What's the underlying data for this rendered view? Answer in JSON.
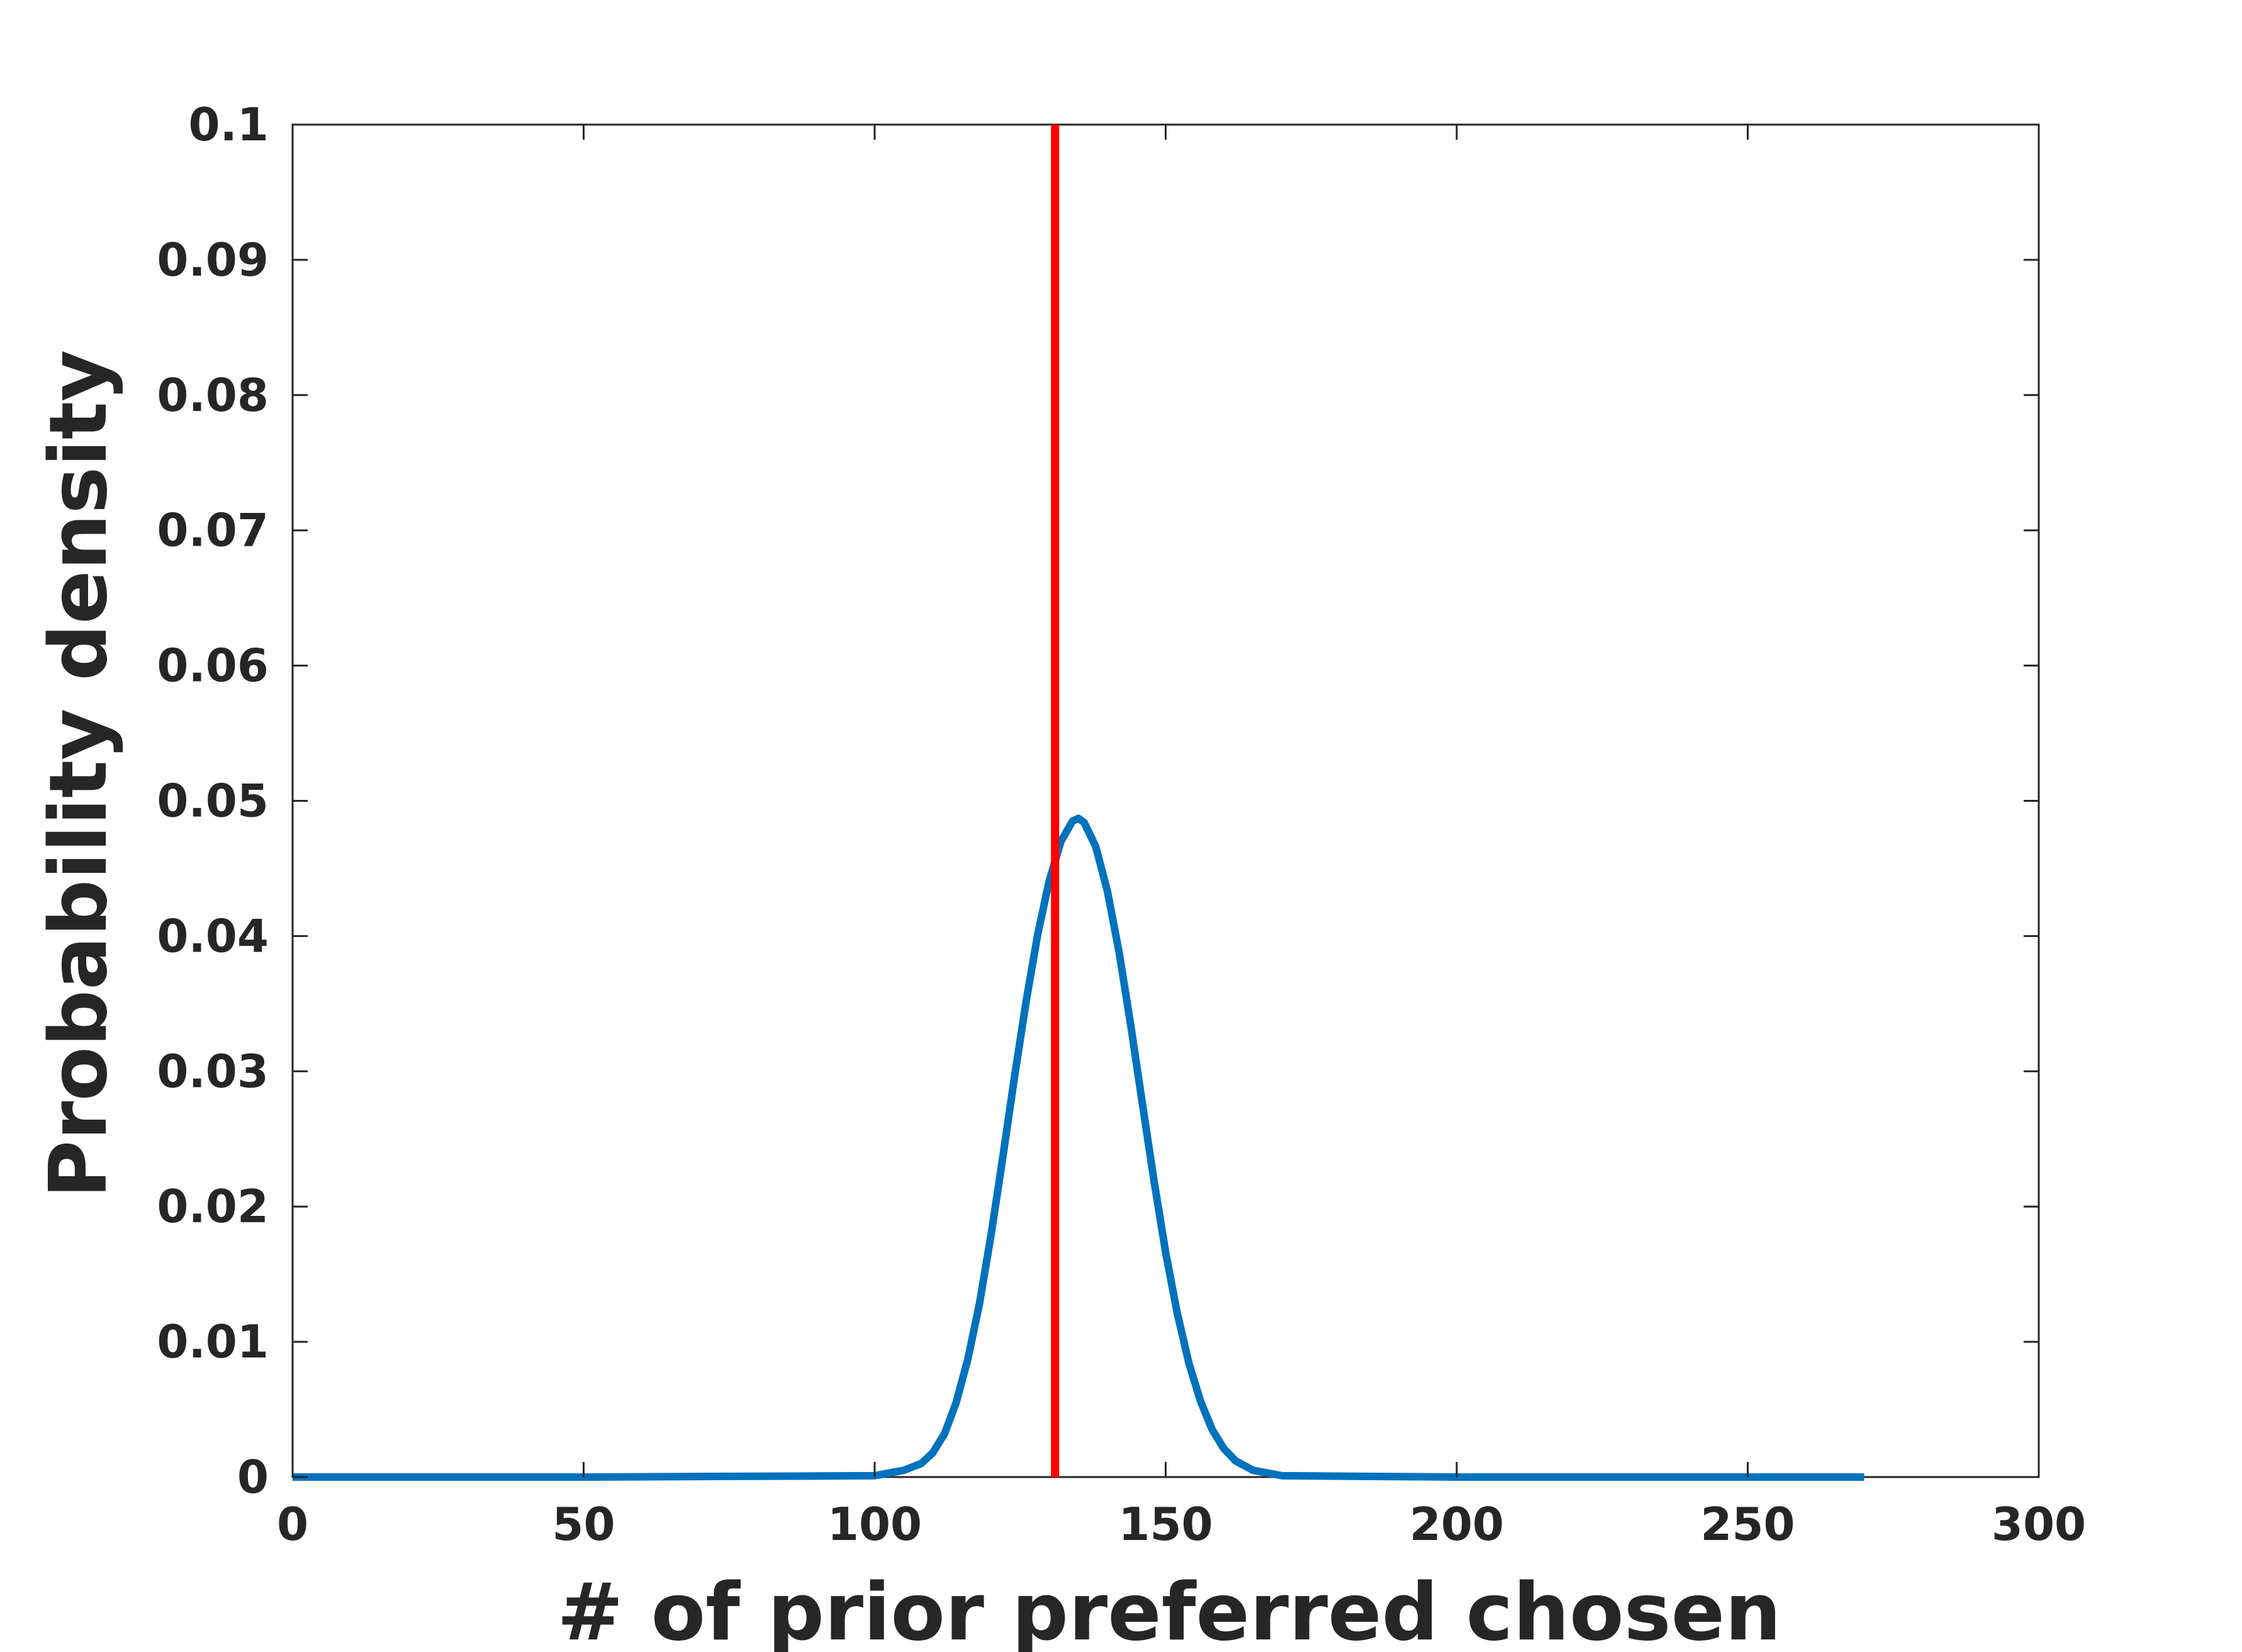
{
  "chart_data": {
    "type": "line",
    "xlabel": "# of prior preferred chosen",
    "ylabel": "Probability density",
    "xlim": [
      0,
      300
    ],
    "ylim": [
      0,
      0.1
    ],
    "x_ticks": [
      0,
      50,
      100,
      150,
      200,
      250,
      300
    ],
    "x_tick_labels": [
      "0",
      "50",
      "100",
      "150",
      "200",
      "250",
      "300"
    ],
    "y_ticks": [
      0,
      0.01,
      0.02,
      0.03,
      0.04,
      0.05,
      0.06,
      0.07,
      0.08,
      0.09,
      0.1
    ],
    "y_tick_labels": [
      "0",
      "0.01",
      "0.02",
      "0.03",
      "0.04",
      "0.05",
      "0.06",
      "0.07",
      "0.08",
      "0.09",
      "0.1"
    ],
    "grid": false,
    "series": [
      {
        "color": "#0072BD",
        "x": [
          0,
          50,
          100,
          105,
          108,
          110,
          112,
          114,
          116,
          118,
          120,
          122,
          124,
          126,
          128,
          130,
          132,
          134,
          135,
          136,
          138,
          140,
          142,
          144,
          146,
          148,
          150,
          152,
          154,
          156,
          158,
          160,
          162,
          165,
          170,
          200,
          250,
          270
        ],
        "y": [
          0,
          0,
          0.0001,
          0.0005,
          0.001,
          0.0018,
          0.0032,
          0.0055,
          0.0087,
          0.0128,
          0.0179,
          0.0236,
          0.0295,
          0.0351,
          0.0401,
          0.0441,
          0.047,
          0.0485,
          0.0487,
          0.0484,
          0.0466,
          0.0433,
          0.0388,
          0.0334,
          0.0276,
          0.0219,
          0.0166,
          0.0121,
          0.0084,
          0.0056,
          0.0035,
          0.0021,
          0.0012,
          0.0005,
          0.0001,
          0,
          0,
          0
        ]
      }
    ],
    "vertical_lines": [
      {
        "x": 131,
        "color": "#FF0000"
      }
    ]
  }
}
